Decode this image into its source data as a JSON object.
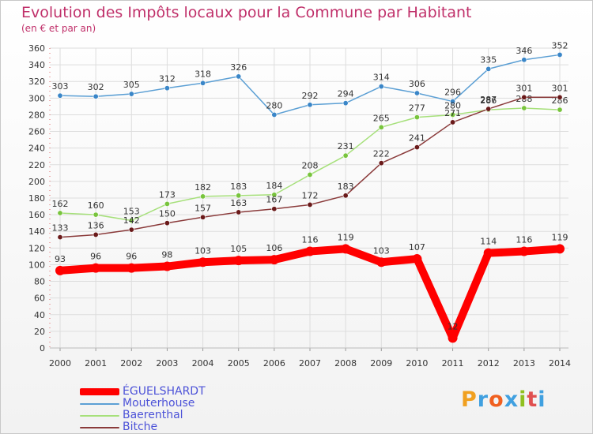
{
  "title": "Evolution des Impôts locaux pour la Commune par Habitant",
  "subtitle": "(en € et par an)",
  "logo": {
    "text": "Proxiti",
    "colors": [
      "#f0a020",
      "#40a0e0",
      "#f06020",
      "#40a0e0",
      "#90c020",
      "#e05050",
      "#40a0e0"
    ]
  },
  "chart_data": {
    "type": "line",
    "x": [
      "2000",
      "2001",
      "2002",
      "2003",
      "2004",
      "2005",
      "2006",
      "2007",
      "2008",
      "2009",
      "2010",
      "2011",
      "2012",
      "2013",
      "2014"
    ],
    "ylim": [
      0,
      360
    ],
    "yticks": [
      0,
      20,
      40,
      60,
      80,
      100,
      120,
      140,
      160,
      180,
      200,
      220,
      240,
      260,
      280,
      300,
      320,
      340,
      360
    ],
    "grid": true,
    "legend_position": "bottom-left",
    "series": [
      {
        "name": "Mouterhouse",
        "color": "#5b9fd4",
        "point_color": "#3a86c8",
        "values": [
          303,
          302,
          305,
          312,
          318,
          326,
          280,
          292,
          294,
          314,
          306,
          296,
          335,
          346,
          352
        ]
      },
      {
        "name": "Baerenthal",
        "color": "#a6e07a",
        "point_color": "#78c43c",
        "values": [
          162,
          160,
          153,
          173,
          182,
          183,
          184,
          208,
          231,
          265,
          277,
          280,
          286,
          288,
          286
        ]
      },
      {
        "name": "Bitche",
        "color": "#8a3a3a",
        "point_color": "#6a1a1a",
        "values": [
          133,
          136,
          142,
          150,
          157,
          163,
          167,
          172,
          183,
          222,
          241,
          271,
          287,
          301,
          301
        ]
      },
      {
        "name": "ÉGUELSHARDT",
        "color": "#ff0000",
        "point_color": "#ff0000",
        "values": [
          93,
          96,
          96,
          98,
          103,
          105,
          106,
          116,
          119,
          103,
          107,
          12,
          114,
          116,
          119
        ]
      }
    ],
    "legend_order": [
      "ÉGUELSHARDT",
      "Mouterhouse",
      "Baerenthal",
      "Bitche"
    ]
  }
}
